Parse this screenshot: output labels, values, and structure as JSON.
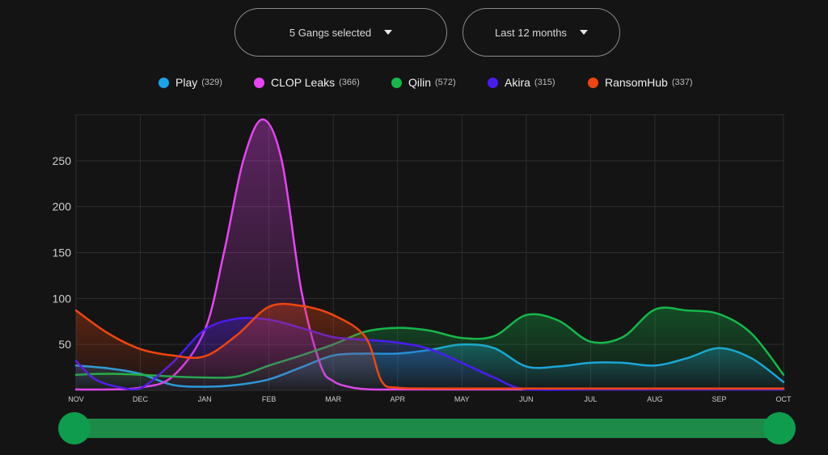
{
  "filters": {
    "gangs_label": "5 Gangs selected",
    "range_label": "Last 12 months"
  },
  "legend": [
    {
      "name": "Play",
      "count": "(329)",
      "color": "#1ca4ea"
    },
    {
      "name": "CLOP Leaks",
      "count": "(366)",
      "color": "#e844f4"
    },
    {
      "name": "Qilin",
      "count": "(572)",
      "color": "#16b84a"
    },
    {
      "name": "Akira",
      "count": "(315)",
      "color": "#4b1cf2"
    },
    {
      "name": "RansomHub",
      "count": "(337)",
      "color": "#f04510"
    }
  ],
  "chart_data": {
    "type": "area",
    "categories": [
      "NOV",
      "DEC",
      "JAN",
      "FEB",
      "MAR",
      "APR",
      "MAY",
      "JUN",
      "JUL",
      "AUG",
      "SEP",
      "OCT"
    ],
    "y_ticks": [
      "50",
      "100",
      "150",
      "200",
      "250"
    ],
    "ylim": [
      0,
      300
    ],
    "grid": true,
    "legend_position": "top-center",
    "series": [
      {
        "name": "Play",
        "color": "#1ca4ea",
        "points": [
          [
            0,
            27
          ],
          [
            0.5,
            24
          ],
          [
            1,
            18
          ],
          [
            1.5,
            6
          ],
          [
            2,
            4
          ],
          [
            2.5,
            6
          ],
          [
            3,
            12
          ],
          [
            3.5,
            25
          ],
          [
            4,
            38
          ],
          [
            4.5,
            40
          ],
          [
            5,
            40
          ],
          [
            5.5,
            44
          ],
          [
            6,
            50
          ],
          [
            6.5,
            46
          ],
          [
            7,
            26
          ],
          [
            7.5,
            26
          ],
          [
            8,
            30
          ],
          [
            8.5,
            30
          ],
          [
            9,
            27
          ],
          [
            9.5,
            35
          ],
          [
            10,
            46
          ],
          [
            10.5,
            35
          ],
          [
            11,
            9
          ]
        ]
      },
      {
        "name": "CLOP Leaks",
        "color": "#e844f4",
        "points": [
          [
            0,
            1
          ],
          [
            0.5,
            1
          ],
          [
            1,
            3
          ],
          [
            1.5,
            15
          ],
          [
            2,
            65
          ],
          [
            2.3,
            150
          ],
          [
            2.6,
            250
          ],
          [
            2.9,
            295
          ],
          [
            3.2,
            250
          ],
          [
            3.5,
            110
          ],
          [
            3.8,
            28
          ],
          [
            4,
            10
          ],
          [
            4.3,
            3
          ],
          [
            4.6,
            1
          ],
          [
            5,
            1
          ],
          [
            6,
            1
          ],
          [
            7,
            1
          ],
          [
            8,
            1
          ],
          [
            9,
            1
          ],
          [
            10,
            1
          ],
          [
            11,
            1
          ]
        ]
      },
      {
        "name": "Qilin",
        "color": "#16b84a",
        "points": [
          [
            0,
            17
          ],
          [
            0.5,
            18
          ],
          [
            1,
            17
          ],
          [
            1.5,
            15
          ],
          [
            2,
            14
          ],
          [
            2.5,
            15
          ],
          [
            3,
            27
          ],
          [
            3.5,
            38
          ],
          [
            4,
            50
          ],
          [
            4.5,
            64
          ],
          [
            5,
            68
          ],
          [
            5.5,
            65
          ],
          [
            6,
            57
          ],
          [
            6.5,
            59
          ],
          [
            7,
            82
          ],
          [
            7.5,
            76
          ],
          [
            8,
            53
          ],
          [
            8.5,
            58
          ],
          [
            9,
            88
          ],
          [
            9.5,
            87
          ],
          [
            10,
            83
          ],
          [
            10.5,
            62
          ],
          [
            11,
            17
          ]
        ]
      },
      {
        "name": "Akira",
        "color": "#4b1cf2",
        "points": [
          [
            0,
            32
          ],
          [
            0.3,
            12
          ],
          [
            0.7,
            3
          ],
          [
            1,
            2
          ],
          [
            1.5,
            30
          ],
          [
            2,
            66
          ],
          [
            2.5,
            78
          ],
          [
            3,
            77
          ],
          [
            3.5,
            68
          ],
          [
            4,
            58
          ],
          [
            4.5,
            55
          ],
          [
            5,
            52
          ],
          [
            5.5,
            45
          ],
          [
            6,
            30
          ],
          [
            6.5,
            14
          ],
          [
            7,
            1
          ],
          [
            8,
            1
          ],
          [
            9,
            1
          ],
          [
            10,
            1
          ],
          [
            11,
            1
          ]
        ]
      },
      {
        "name": "RansomHub",
        "color": "#f04510",
        "points": [
          [
            0,
            87
          ],
          [
            0.5,
            62
          ],
          [
            1,
            45
          ],
          [
            1.5,
            38
          ],
          [
            2,
            37
          ],
          [
            2.5,
            60
          ],
          [
            3,
            91
          ],
          [
            3.5,
            92
          ],
          [
            4,
            82
          ],
          [
            4.5,
            58
          ],
          [
            4.75,
            10
          ],
          [
            5,
            3
          ],
          [
            5.5,
            2
          ],
          [
            6,
            2
          ],
          [
            7,
            2
          ],
          [
            8,
            2
          ],
          [
            9,
            2
          ],
          [
            10,
            2
          ],
          [
            11,
            2
          ]
        ]
      }
    ]
  }
}
